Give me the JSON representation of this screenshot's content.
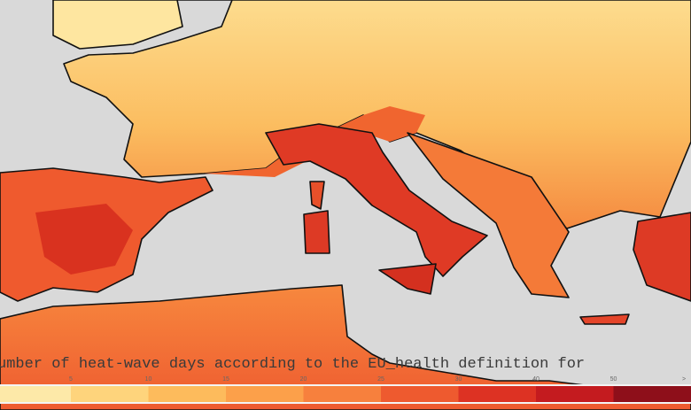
{
  "caption": "umber of heat-wave days according to the EU_health definition for",
  "legend": {
    "labels": [
      "5",
      "10",
      "15",
      "20",
      "25",
      "30",
      "40",
      "50",
      ">"
    ],
    "colors": [
      "#fde9a8",
      "#fed47c",
      "#fdbb5c",
      "#fca04a",
      "#f7803d",
      "#ee5a2f",
      "#dd3223",
      "#c41b1f",
      "#8e0f1a"
    ]
  }
}
